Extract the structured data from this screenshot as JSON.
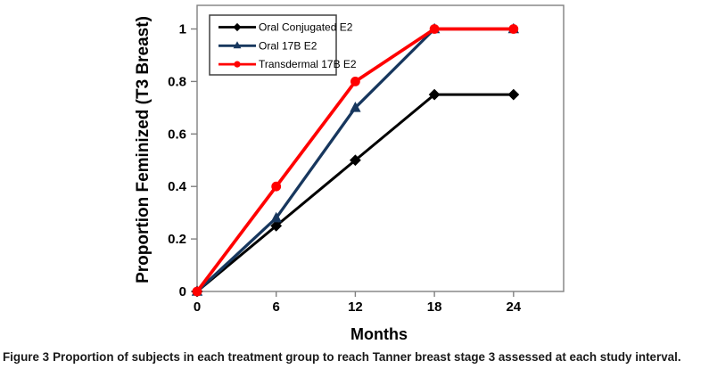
{
  "figure": {
    "caption_label": "Figure 3",
    "caption_text": "Proportion of subjects in each treatment group to reach Tanner breast stage 3 assessed at each study interval."
  },
  "chart_data": {
    "type": "line",
    "x": [
      0,
      6,
      12,
      18,
      24
    ],
    "series": [
      {
        "name": "Oral Conjugated E2",
        "values": [
          0,
          0.25,
          0.5,
          0.75,
          0.75
        ],
        "color": "#000000",
        "marker": "diamond",
        "line_width": 3.0
      },
      {
        "name": "Oral 17B E2",
        "values": [
          0,
          0.28,
          0.7,
          1.0,
          1.0
        ],
        "color": "#17375E",
        "marker": "triangle",
        "line_width": 3.3
      },
      {
        "name": "Transdermal 17B E2",
        "values": [
          0,
          0.4,
          0.8,
          1.0,
          1.0
        ],
        "color": "#FF0000",
        "marker": "circle",
        "line_width": 3.7
      }
    ],
    "xlabel": "Months",
    "ylabel": "Proportion Feminized (T3 Breast)",
    "x_ticks": [
      0,
      6,
      12,
      18,
      24
    ],
    "y_ticks": [
      0,
      0.2,
      0.4,
      0.6,
      0.8,
      1
    ],
    "xlim": [
      0,
      27.8
    ],
    "ylim": [
      0,
      1.09
    ],
    "grid": false,
    "legend_position": "top-left-inside",
    "axis_color": "#808080",
    "legend_border_color": "#404040",
    "background_color": "#ffffff"
  }
}
